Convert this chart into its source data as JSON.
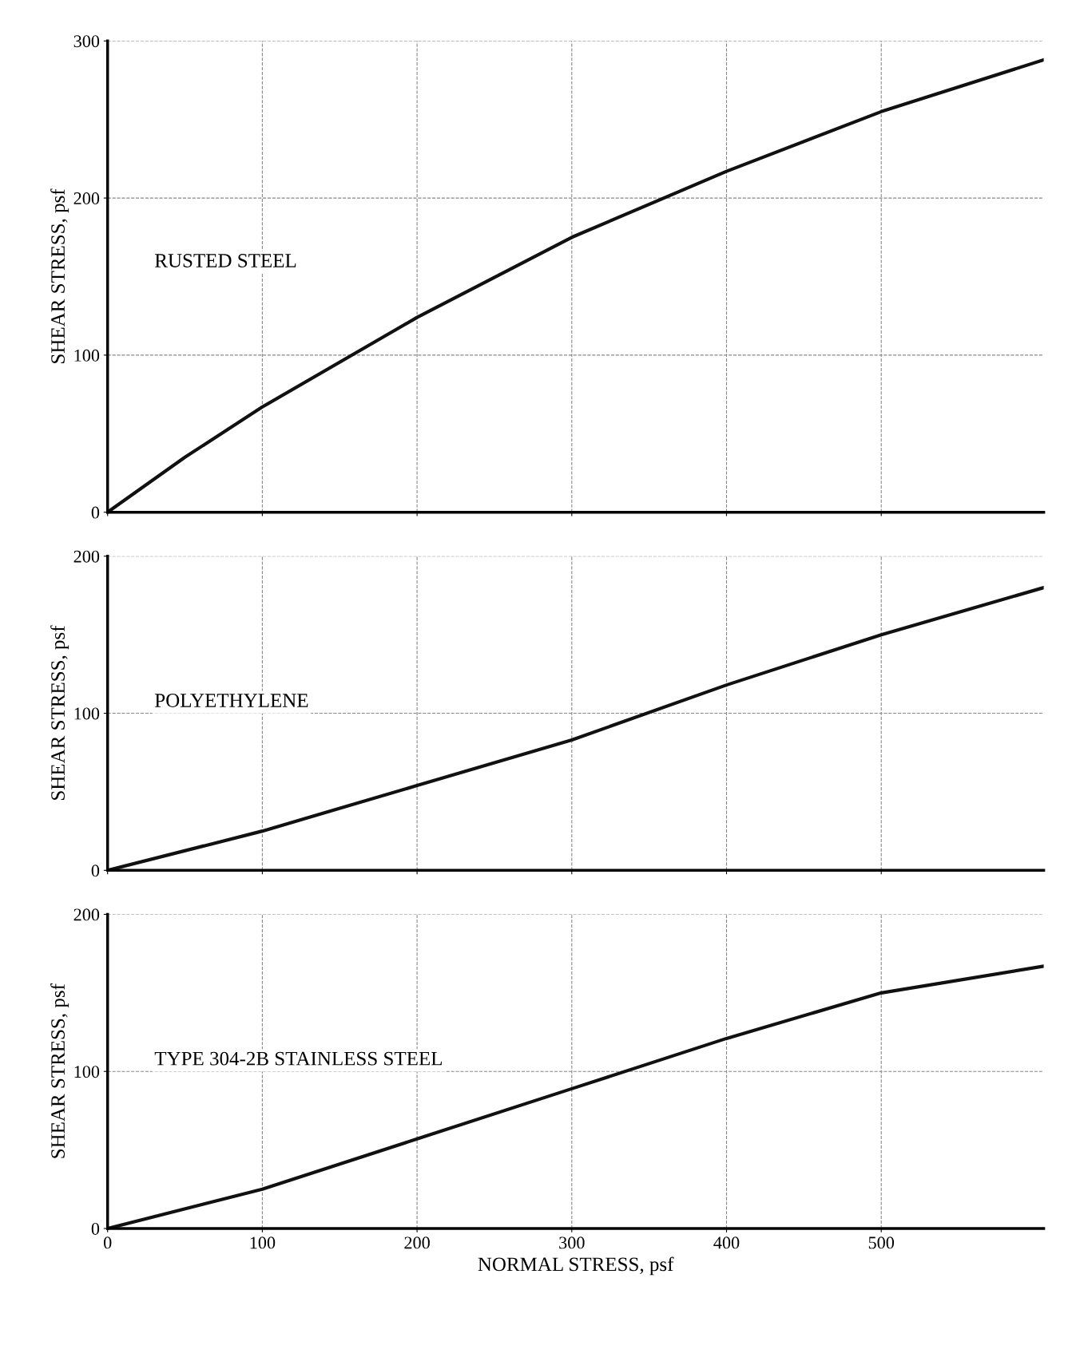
{
  "chart_data": [
    {
      "type": "line",
      "ylabel": "SHEAR STRESS, psf",
      "annotations": [
        "RUSTED STEEL"
      ],
      "x": [
        0,
        50,
        100,
        200,
        300,
        400,
        500,
        605
      ],
      "series": [
        {
          "color": "#111111",
          "values": [
            0,
            35,
            67,
            124,
            175,
            217,
            255,
            288
          ]
        }
      ],
      "xlim": [
        0,
        605
      ],
      "xticks": [
        0,
        100,
        200,
        300,
        400,
        500
      ],
      "ylim": [
        0,
        300
      ],
      "yticks": [
        0,
        100,
        200,
        300
      ],
      "tick_labels": "y",
      "grid": true,
      "marker": "none",
      "line_style": "solid"
    },
    {
      "type": "line",
      "ylabel": "SHEAR STRESS, psf",
      "annotations": [
        "POLYETHYLENE"
      ],
      "x": [
        0,
        100,
        200,
        300,
        400,
        500,
        605
      ],
      "series": [
        {
          "color": "#111111",
          "values": [
            0,
            25,
            54,
            83,
            118,
            150,
            180
          ]
        }
      ],
      "xlim": [
        0,
        605
      ],
      "xticks": [
        0,
        100,
        200,
        300,
        400,
        500
      ],
      "ylim": [
        0,
        200
      ],
      "yticks": [
        0,
        100,
        200
      ],
      "tick_labels": "y",
      "grid": true,
      "marker": "none",
      "line_style": "solid"
    },
    {
      "type": "line",
      "xlabel": "NORMAL STRESS, psf",
      "ylabel": "SHEAR STRESS, psf",
      "annotations": [
        "TYPE 304-2B STAINLESS STEEL"
      ],
      "x": [
        0,
        100,
        200,
        300,
        400,
        500,
        605
      ],
      "series": [
        {
          "color": "#111111",
          "values": [
            0,
            25,
            57,
            89,
            121,
            150,
            167
          ]
        }
      ],
      "xlim": [
        0,
        605
      ],
      "xticks": [
        0,
        100,
        200,
        300,
        400,
        500
      ],
      "ylim": [
        0,
        200
      ],
      "yticks": [
        0,
        100,
        200
      ],
      "grid": true,
      "marker": "none",
      "line_style": "solid"
    }
  ]
}
